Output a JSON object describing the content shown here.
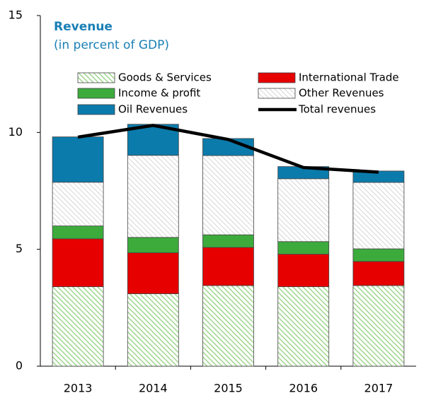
{
  "chart_data": {
    "type": "bar",
    "stacked": true,
    "title": "Revenue",
    "subtitle": "(in percent of GDP)",
    "categories": [
      "2013",
      "2014",
      "2015",
      "2016",
      "2017"
    ],
    "series": [
      {
        "name": "Goods & Services",
        "color": "#8fce7a",
        "pattern": "hatch",
        "values": [
          3.4,
          3.1,
          3.45,
          3.4,
          3.45
        ]
      },
      {
        "name": "International Trade",
        "color": "#e60000",
        "values": [
          2.05,
          1.75,
          1.63,
          1.39,
          1.03
        ]
      },
      {
        "name": "Income & profit",
        "color": "#3cab3c",
        "values": [
          0.55,
          0.66,
          0.54,
          0.54,
          0.54
        ]
      },
      {
        "name": "Other Revenues",
        "color": "#c8c8c8",
        "pattern": "hatch",
        "values": [
          1.87,
          3.51,
          3.39,
          2.69,
          2.84
        ]
      },
      {
        "name": "Oil Revenues",
        "color": "#0b7bab",
        "values": [
          1.94,
          1.33,
          0.73,
          0.52,
          0.49
        ]
      },
      {
        "name": "Total revenues",
        "color": "#000000",
        "type": "line",
        "values": [
          9.8,
          10.3,
          9.7,
          8.5,
          8.3
        ]
      }
    ],
    "ylim": [
      0,
      15
    ],
    "yticks": [
      0,
      5,
      10,
      15
    ]
  }
}
